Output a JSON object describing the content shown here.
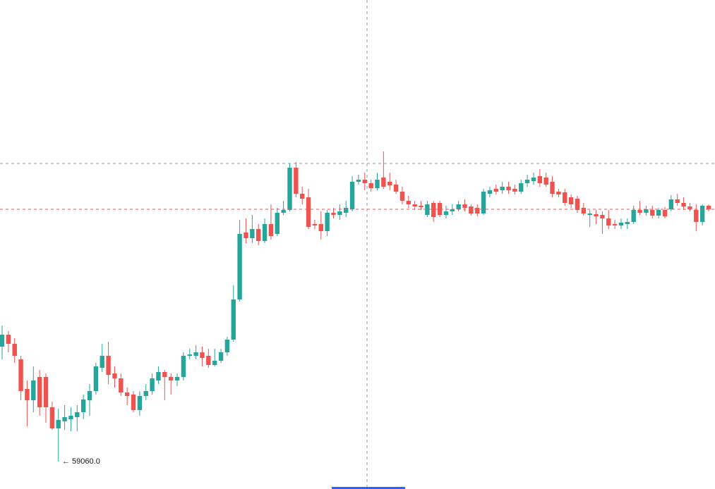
{
  "chart_data": {
    "type": "candlestick",
    "ylim": [
      58865,
      62335
    ],
    "up_color": "#26a69a",
    "down_color": "#ef5350",
    "annotation": {
      "value": 59060,
      "label": "← 59060.0"
    },
    "open": [
      59875,
      59960,
      59895,
      59785,
      59575,
      59495,
      59660,
      59660,
      59445,
      59295,
      59345,
      59360,
      59375,
      59410,
      59495,
      59560,
      59725,
      59810,
      59685,
      59650,
      59550,
      59535,
      59425,
      59525,
      59560,
      59635,
      59695,
      59660,
      59635,
      59660,
      59810,
      59810,
      59835,
      59810,
      59745,
      59775,
      59835,
      59925,
      60210,
      60685,
      60645,
      60710,
      60625,
      60745,
      60675,
      60825,
      60845,
      61145,
      60960,
      60935,
      60745,
      60745,
      60695,
      60825,
      60810,
      60825,
      60850,
      61045,
      61060,
      61035,
      61000,
      61075,
      61045,
      61025,
      60975,
      60910,
      60885,
      60875,
      60810,
      60895,
      60895,
      60810,
      60835,
      60850,
      60885,
      60870,
      60860,
      60820,
      60960,
      60995,
      60985,
      61010,
      60995,
      60975,
      61035,
      61050,
      61085,
      61075,
      61045,
      60975,
      60970,
      60935,
      60925,
      60860,
      60810,
      60815,
      60810,
      60785,
      60745,
      60735,
      60745,
      60760,
      60845,
      60825,
      60845,
      60805,
      60845,
      60850,
      60920,
      60895,
      60870,
      60845,
      60760,
      60875
    ],
    "high": [
      60025,
      59985,
      59935,
      59810,
      59635,
      59735,
      59710,
      59685,
      59485,
      59435,
      59460,
      59445,
      59460,
      59535,
      59610,
      59760,
      59895,
      59910,
      59735,
      59685,
      59585,
      59560,
      59560,
      59610,
      59685,
      59735,
      59710,
      59685,
      59685,
      59835,
      59860,
      59885,
      59875,
      59860,
      59860,
      59860,
      59945,
      60310,
      60775,
      60785,
      60810,
      60745,
      60785,
      60885,
      60860,
      60910,
      61175,
      61185,
      61010,
      60995,
      60775,
      60835,
      60845,
      60860,
      60885,
      60910,
      61085,
      61095,
      61110,
      61060,
      61110,
      61260,
      61110,
      61060,
      61010,
      60945,
      60910,
      60910,
      60910,
      60910,
      60910,
      60875,
      60885,
      60910,
      60920,
      60885,
      60885,
      60995,
      61010,
      61025,
      61045,
      61045,
      61025,
      61060,
      61095,
      61110,
      61135,
      61110,
      61085,
      60995,
      60995,
      60955,
      60945,
      60895,
      60845,
      60845,
      60835,
      60845,
      60775,
      60785,
      60785,
      60875,
      60910,
      60875,
      60875,
      60860,
      60865,
      60950,
      60960,
      60935,
      60895,
      60885,
      60885,
      60885
    ],
    "low": [
      59785,
      59835,
      59760,
      59495,
      59310,
      59410,
      59385,
      59335,
      59285,
      59060,
      59285,
      59275,
      59275,
      59360,
      59385,
      59535,
      59695,
      59610,
      59585,
      59525,
      59460,
      59410,
      59385,
      59495,
      59535,
      59610,
      59495,
      59535,
      59595,
      59635,
      59785,
      59785,
      59735,
      59725,
      59735,
      59760,
      59810,
      59910,
      60195,
      60610,
      60610,
      60595,
      60610,
      60635,
      60660,
      60810,
      60835,
      60935,
      60885,
      60710,
      60710,
      60635,
      60660,
      60785,
      60775,
      60795,
      60835,
      61025,
      60985,
      60975,
      60985,
      60995,
      60985,
      60960,
      60885,
      60860,
      60845,
      60845,
      60795,
      60760,
      60795,
      60785,
      60810,
      60835,
      60835,
      60805,
      60800,
      60810,
      60935,
      60955,
      60960,
      60960,
      60955,
      60960,
      61010,
      61025,
      61010,
      61010,
      60935,
      60935,
      60875,
      60860,
      60825,
      60805,
      60725,
      60745,
      60675,
      60710,
      60710,
      60710,
      60710,
      60745,
      60810,
      60805,
      60785,
      60785,
      60785,
      60835,
      60875,
      60845,
      60835,
      60695,
      60735,
      60835
    ],
    "close": [
      59960,
      59895,
      59810,
      59560,
      59495,
      59635,
      59445,
      59445,
      59295,
      59355,
      59375,
      59385,
      59410,
      59500,
      59560,
      59735,
      59810,
      59675,
      59650,
      59550,
      59525,
      59425,
      59525,
      59560,
      59650,
      59695,
      59660,
      59635,
      59660,
      59810,
      59820,
      59835,
      59795,
      59745,
      59775,
      59835,
      59925,
      60210,
      60675,
      60645,
      60710,
      60625,
      60745,
      60660,
      60825,
      60845,
      61145,
      60960,
      60925,
      60725,
      60735,
      60695,
      60825,
      60810,
      60835,
      60860,
      61045,
      61060,
      61035,
      61000,
      61060,
      61010,
      61020,
      60975,
      60910,
      60885,
      60870,
      60865,
      60885,
      60795,
      60810,
      60835,
      60850,
      60885,
      60860,
      60820,
      60820,
      60975,
      60985,
      60975,
      61010,
      60985,
      60975,
      61035,
      61060,
      61075,
      61035,
      61025,
      60960,
      60955,
      60895,
      60885,
      60845,
      60820,
      60820,
      60800,
      60785,
      60735,
      60735,
      60755,
      60760,
      60845,
      60825,
      60850,
      60805,
      60845,
      60800,
      60920,
      60895,
      60870,
      60850,
      60760,
      60875,
      60850
    ]
  }
}
